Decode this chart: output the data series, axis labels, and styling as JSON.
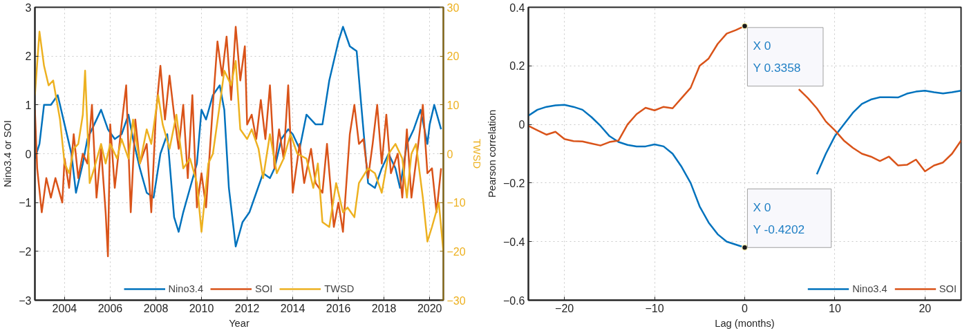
{
  "chart_data": [
    {
      "type": "line",
      "xlabel": "Year",
      "ylabel": "Nino3.4 or SOI",
      "y2label": "TWSD",
      "xlim": [
        2002.7,
        2020.6
      ],
      "xticks": [
        2004,
        2006,
        2008,
        2010,
        2012,
        2014,
        2016,
        2018,
        2020
      ],
      "ylim": [
        -3,
        3
      ],
      "yticks": [
        -3,
        -2,
        -1,
        0,
        1,
        2,
        3
      ],
      "y2lim": [
        -30,
        30
      ],
      "y2ticks": [
        -30,
        -20,
        -10,
        0,
        10,
        20,
        30
      ],
      "grid": true,
      "legend": "bottom",
      "line_style": "solid",
      "series": [
        {
          "name": "Nino3.4",
          "color": "#0072bd",
          "x": [
            2002.7,
            2002.9,
            2003.1,
            2003.4,
            2003.7,
            2004.0,
            2004.3,
            2004.5,
            2004.8,
            2005.0,
            2005.3,
            2005.6,
            2005.9,
            2006.2,
            2006.5,
            2006.8,
            2007.0,
            2007.3,
            2007.6,
            2007.9,
            2008.2,
            2008.5,
            2008.8,
            2009.0,
            2009.2,
            2009.5,
            2009.8,
            2010.0,
            2010.2,
            2010.5,
            2010.8,
            2011.0,
            2011.2,
            2011.5,
            2011.8,
            2012.1,
            2012.4,
            2012.7,
            2013.0,
            2013.2,
            2013.5,
            2013.8,
            2014.0,
            2014.3,
            2014.6,
            2015.0,
            2015.3,
            2015.6,
            2016.0,
            2016.2,
            2016.5,
            2016.8,
            2017.0,
            2017.3,
            2017.6,
            2017.9,
            2018.2,
            2018.5,
            2018.7,
            2019.0,
            2019.3,
            2019.6,
            2019.9,
            2020.0,
            2020.2,
            2020.5
          ],
          "values": [
            -0.1,
            0.2,
            1.0,
            1.0,
            1.2,
            0.6,
            0.0,
            -0.8,
            -0.2,
            0.3,
            0.6,
            0.9,
            0.5,
            0.3,
            0.4,
            0.8,
            0.3,
            -0.3,
            -0.8,
            -0.9,
            0.0,
            0.4,
            -1.3,
            -1.6,
            -1.2,
            -0.7,
            -0.2,
            0.9,
            0.7,
            1.2,
            1.4,
            0.9,
            -0.7,
            -1.9,
            -1.4,
            -1.2,
            -0.8,
            -0.4,
            -0.5,
            -0.3,
            0.3,
            0.5,
            0.4,
            0.1,
            0.8,
            0.6,
            0.6,
            1.5,
            2.3,
            2.6,
            2.2,
            2.1,
            1.0,
            -0.6,
            -0.7,
            -0.3,
            0.0,
            -0.3,
            -0.7,
            0.2,
            0.5,
            0.9,
            0.2,
            0.6,
            1.0,
            0.5
          ]
        },
        {
          "name": "SOI",
          "color": "#d95319",
          "x": [
            2002.7,
            2002.8,
            2003.0,
            2003.2,
            2003.4,
            2003.6,
            2003.9,
            2004.0,
            2004.2,
            2004.4,
            2004.6,
            2004.8,
            2005.0,
            2005.2,
            2005.4,
            2005.6,
            2005.8,
            2005.9,
            2006.0,
            2006.2,
            2006.5,
            2006.7,
            2006.9,
            2007.1,
            2007.3,
            2007.6,
            2007.8,
            2008.0,
            2008.2,
            2008.4,
            2008.6,
            2008.8,
            2009.0,
            2009.2,
            2009.4,
            2009.6,
            2009.8,
            2010.0,
            2010.2,
            2010.5,
            2010.7,
            2010.9,
            2011.1,
            2011.3,
            2011.5,
            2011.7,
            2011.9,
            2012.0,
            2012.2,
            2012.4,
            2012.6,
            2012.8,
            2013.0,
            2013.2,
            2013.4,
            2013.6,
            2013.8,
            2014.0,
            2014.3,
            2014.5,
            2014.8,
            2015.0,
            2015.3,
            2015.5,
            2015.8,
            2016.0,
            2016.2,
            2016.5,
            2016.7,
            2016.9,
            2017.1,
            2017.3,
            2017.5,
            2017.7,
            2017.9,
            2018.1,
            2018.3,
            2018.6,
            2018.8,
            2019.0,
            2019.2,
            2019.5,
            2019.7,
            2019.9,
            2020.1,
            2020.3,
            2020.5
          ],
          "values": [
            0.9,
            -0.3,
            -1.2,
            -0.5,
            -0.9,
            -0.5,
            -1.0,
            -0.1,
            -0.7,
            0.4,
            -0.5,
            0.0,
            -0.2,
            1.0,
            -0.9,
            0.1,
            -1.2,
            -2.1,
            0.6,
            -0.7,
            0.6,
            1.4,
            -1.2,
            0.7,
            -0.2,
            0.2,
            -1.2,
            0.8,
            1.8,
            0.7,
            1.6,
            0.8,
            0.1,
            1.0,
            -0.5,
            1.2,
            -1.1,
            -0.4,
            -1.1,
            1.0,
            2.3,
            1.6,
            2.4,
            1.1,
            2.6,
            1.5,
            2.2,
            0.6,
            0.8,
            0.3,
            1.1,
            0.3,
            1.4,
            -0.3,
            0.5,
            -0.1,
            1.4,
            -0.8,
            0.2,
            -0.6,
            0.1,
            -0.6,
            -0.8,
            0.2,
            -1.5,
            -1.0,
            -1.6,
            0.4,
            1.0,
            0.2,
            0.3,
            -0.5,
            0.2,
            1.0,
            -0.2,
            0.8,
            -0.4,
            0.0,
            -0.9,
            0.5,
            -0.9,
            0.2,
            1.0,
            -0.4,
            -0.3,
            -1.2,
            -0.3
          ]
        },
        {
          "name": "TWSD",
          "color": "#edb120",
          "axis": "y2",
          "x": [
            2002.7,
            2002.9,
            2003.1,
            2003.3,
            2003.5,
            2003.8,
            2004.0,
            2004.2,
            2004.4,
            2004.6,
            2004.8,
            2004.9,
            2005.1,
            2005.3,
            2005.6,
            2005.8,
            2006.0,
            2006.3,
            2006.5,
            2006.8,
            2007.0,
            2007.3,
            2007.6,
            2007.8,
            2008.1,
            2008.3,
            2008.6,
            2008.9,
            2009.2,
            2009.5,
            2009.8,
            2010.0,
            2010.3,
            2010.5,
            2010.8,
            2011.0,
            2011.3,
            2011.5,
            2011.7,
            2012.0,
            2012.2,
            2012.5,
            2012.7,
            2013.0,
            2013.3,
            2013.6,
            2013.9,
            2014.2,
            2014.6,
            2014.9,
            2015.1,
            2015.3,
            2015.6,
            2015.9,
            2016.2,
            2016.4,
            2016.7,
            2016.9,
            2017.3,
            2017.6,
            2017.9,
            2018.2,
            2018.5,
            2018.8,
            2019.0,
            2019.2,
            2019.4,
            2019.7,
            2019.9,
            2020.1,
            2020.4,
            2020.6
          ],
          "values": [
            12,
            25,
            18,
            14,
            15,
            7,
            -2,
            -4,
            1,
            2,
            8,
            17,
            -6,
            -3,
            2,
            -2,
            2,
            -1,
            3,
            -1,
            7,
            -2,
            5,
            2,
            12,
            6,
            1,
            8,
            -3,
            -1,
            -6,
            -16,
            -2,
            0,
            10,
            17,
            14,
            19,
            5,
            3,
            5,
            1,
            -5,
            4,
            -4,
            -1,
            4,
            0,
            -1,
            -7,
            -2,
            -14,
            -15,
            -6,
            -12,
            -11,
            -13,
            -6,
            -3,
            -4,
            -8,
            0,
            2,
            -1,
            -9,
            0,
            2,
            -9,
            -18,
            -15,
            -10,
            -20
          ]
        }
      ]
    },
    {
      "type": "line",
      "xlabel": "Lag (months)",
      "ylabel": "Pearson correlation",
      "xlim": [
        -24,
        24
      ],
      "xticks": [
        -20,
        -10,
        0,
        10,
        20
      ],
      "ylim": [
        -0.6,
        0.4
      ],
      "yticks": [
        -0.6,
        -0.4,
        -0.2,
        0,
        0.2,
        0.4
      ],
      "grid": true,
      "legend": "bottom right",
      "line_style": "solid",
      "x": [
        -24,
        -23,
        -22,
        -21,
        -20,
        -19,
        -18,
        -17,
        -16,
        -15,
        -14,
        -13,
        -12,
        -11,
        -10,
        -9,
        -8,
        -7,
        -6,
        -5,
        -4,
        -3,
        -2,
        -1,
        0,
        1,
        2,
        3,
        4,
        5,
        6,
        7,
        8,
        9,
        10,
        11,
        12,
        13,
        14,
        15,
        16,
        17,
        18,
        19,
        20,
        21,
        22,
        23,
        24
      ],
      "series": [
        {
          "name": "Nino3.4",
          "color": "#0072bd",
          "values": [
            0.03,
            0.05,
            0.06,
            0.065,
            0.067,
            0.06,
            0.05,
            0.025,
            -0.005,
            -0.04,
            -0.06,
            -0.07,
            -0.075,
            -0.075,
            -0.068,
            -0.075,
            -0.1,
            -0.145,
            -0.2,
            -0.28,
            -0.335,
            -0.375,
            -0.4,
            -0.41,
            -0.4202,
            null,
            null,
            null,
            null,
            null,
            null,
            null,
            -0.17,
            -0.1,
            -0.04,
            0.0,
            0.04,
            0.07,
            0.085,
            0.093,
            0.093,
            0.092,
            0.105,
            0.112,
            0.115,
            0.11,
            0.106,
            0.11,
            0.115
          ]
        },
        {
          "name": "SOI",
          "color": "#d95319",
          "values": [
            -0.005,
            -0.02,
            -0.035,
            -0.025,
            -0.05,
            -0.057,
            -0.058,
            -0.065,
            -0.072,
            -0.06,
            -0.055,
            0.0,
            0.035,
            0.057,
            0.048,
            0.06,
            0.055,
            0.09,
            0.125,
            0.2,
            0.225,
            0.275,
            0.31,
            0.322,
            0.3358,
            null,
            null,
            null,
            null,
            null,
            0.12,
            0.09,
            0.055,
            0.01,
            -0.02,
            -0.055,
            -0.08,
            -0.1,
            -0.11,
            -0.125,
            -0.11,
            -0.14,
            -0.138,
            -0.12,
            -0.16,
            -0.14,
            -0.13,
            -0.1,
            -0.055
          ]
        }
      ],
      "annotations": [
        {
          "text": "X 0\nY 0.3358",
          "x": 0,
          "y": 0.3358
        },
        {
          "text": "X 0\nY -0.4202",
          "x": 0,
          "y": -0.4202
        }
      ]
    }
  ]
}
